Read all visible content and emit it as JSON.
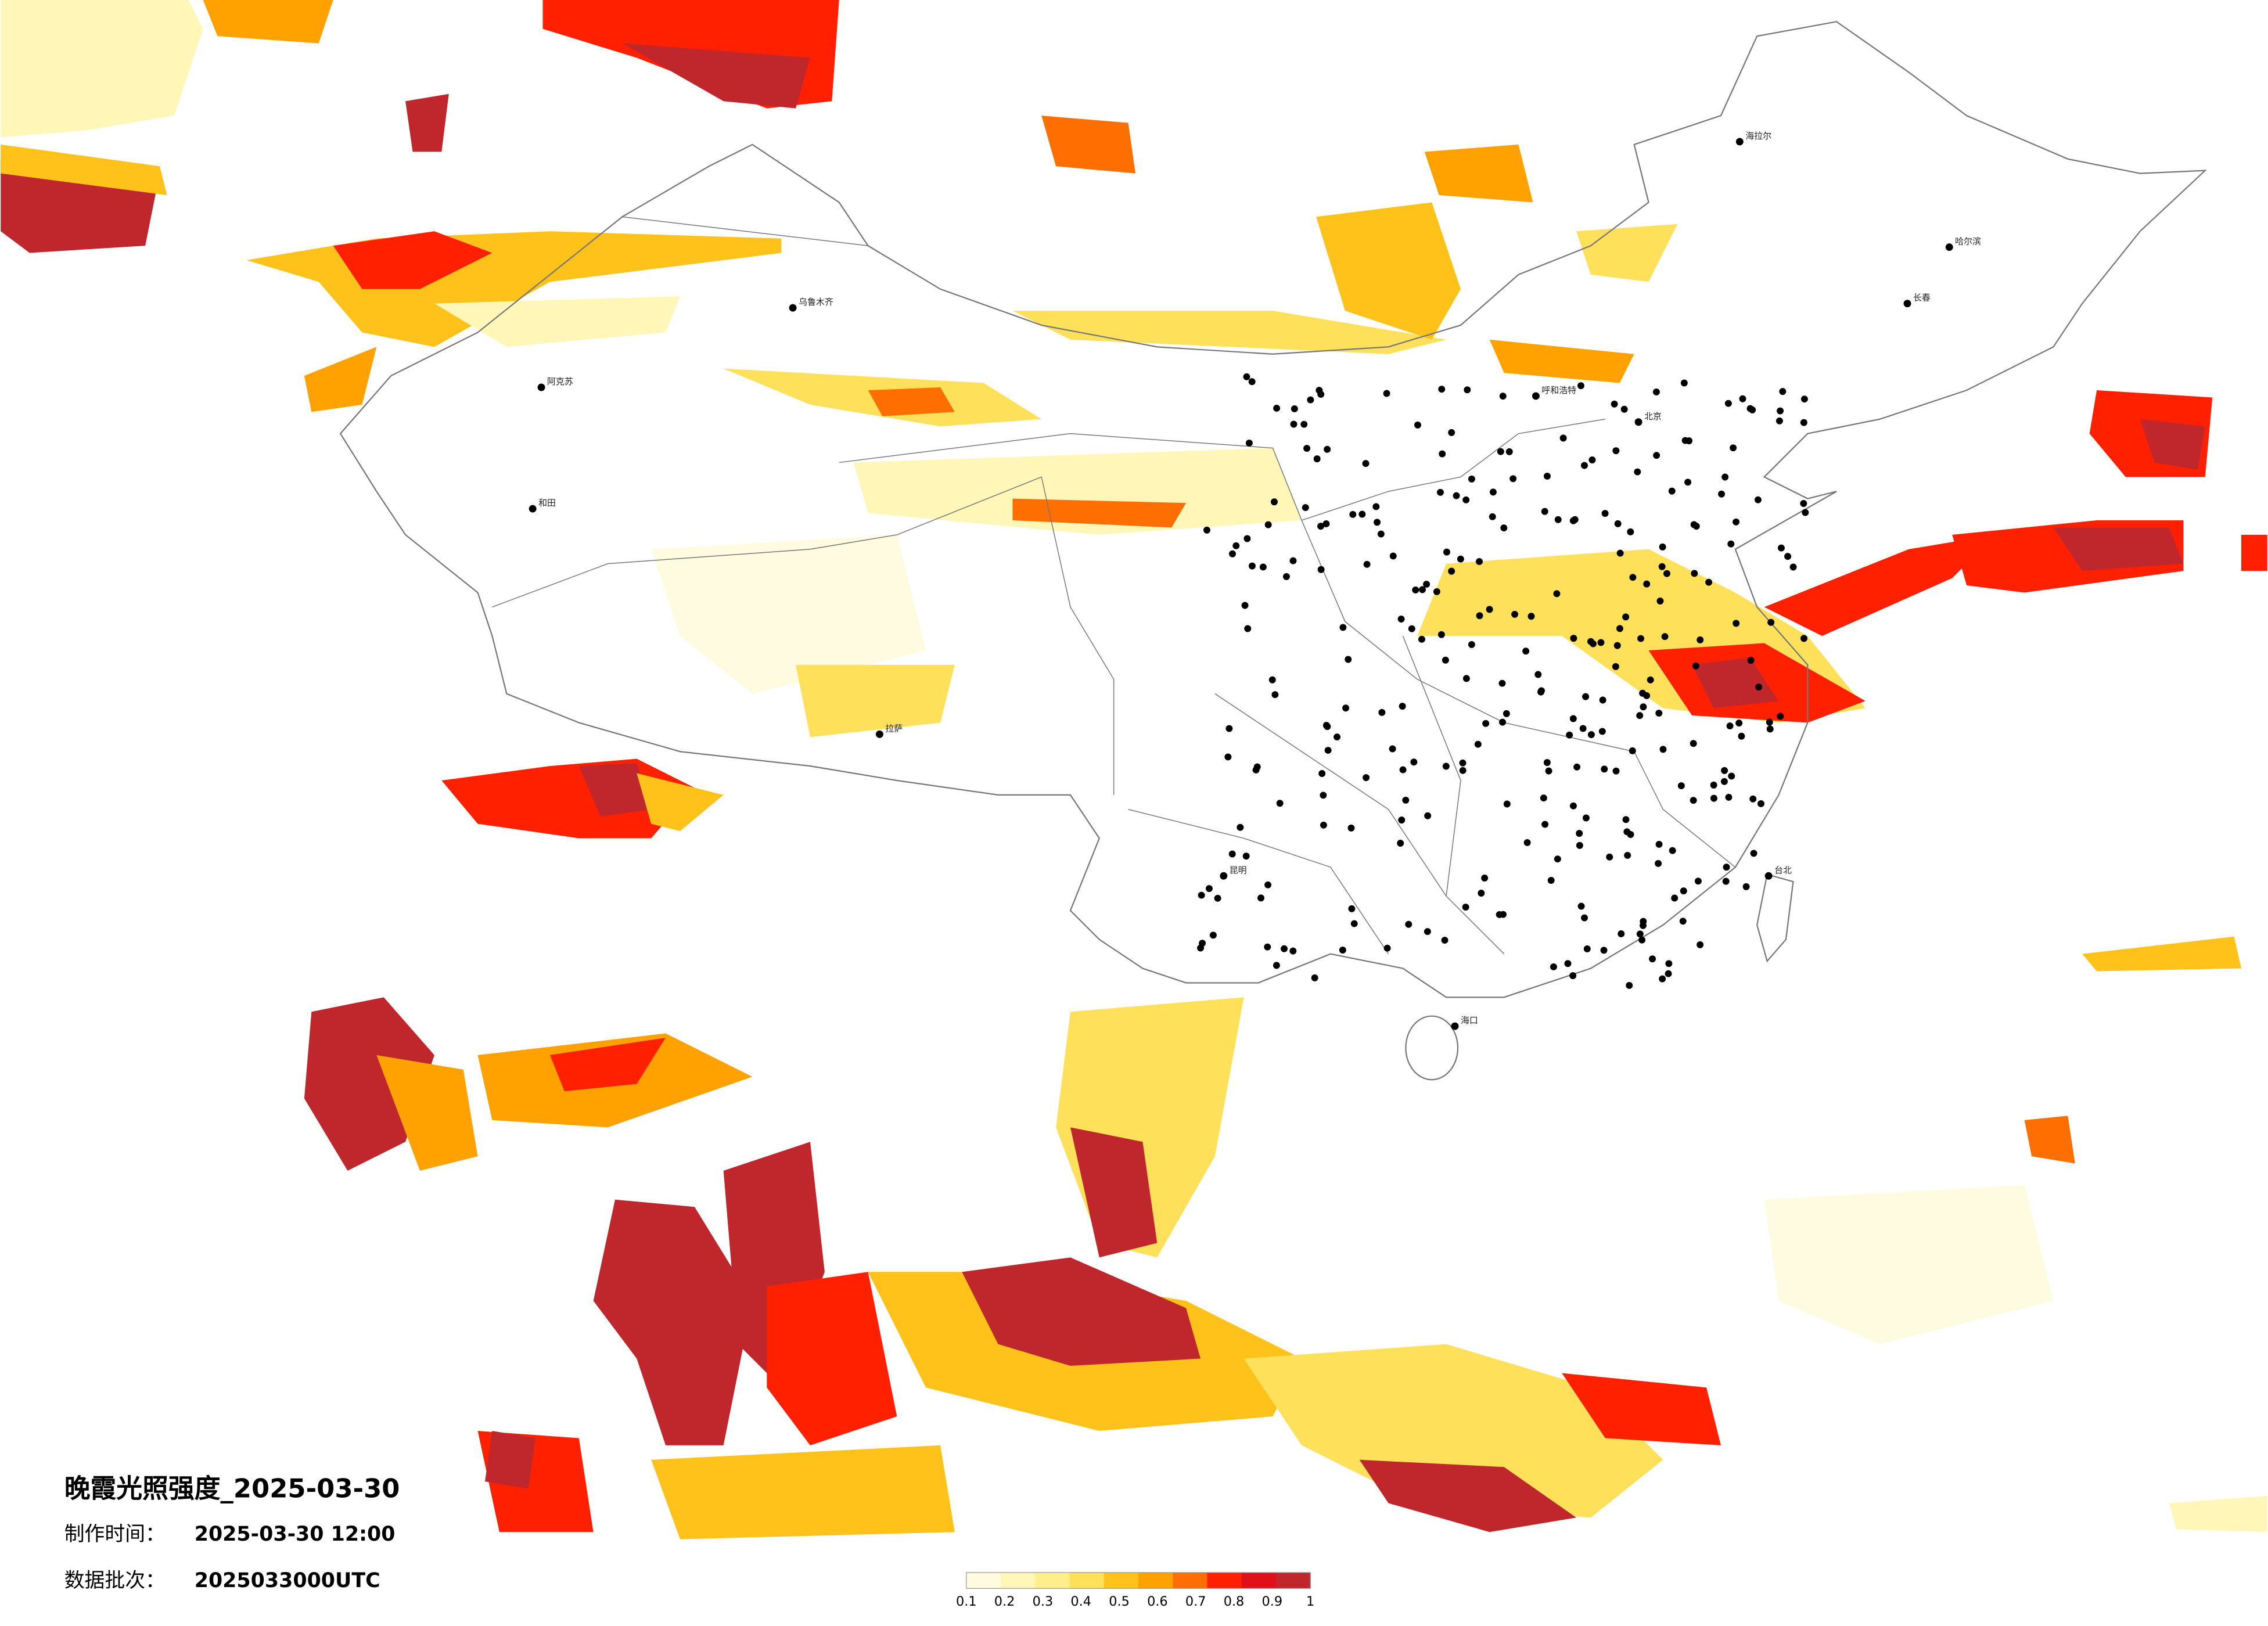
{
  "header": {
    "title": "晚霞光照强度_2025-03-30",
    "production_time_label": "制作时间：",
    "production_time": "2025-03-30 12:00",
    "batch_label": "数据批次：",
    "batch": "2025033000UTC"
  },
  "legend": {
    "colors": [
      "#fffbe0",
      "#fff6b8",
      "#ffef8a",
      "#ffe05a",
      "#ffc21a",
      "#ffa200",
      "#ff6e00",
      "#ff2000",
      "#e0101a",
      "#c0272d"
    ],
    "ticks": [
      0.1,
      0.2,
      0.3,
      0.4,
      0.5,
      0.6,
      0.7,
      0.8,
      0.9,
      1
    ]
  },
  "cities": [
    {
      "name": "乌鲁木齐"
    },
    {
      "name": "和田"
    },
    {
      "name": "拉萨"
    },
    {
      "name": "海拉尔"
    },
    {
      "name": "哈尔滨"
    },
    {
      "name": "长春"
    },
    {
      "name": "北京"
    },
    {
      "name": "呼和浩特"
    },
    {
      "name": "昆明"
    },
    {
      "name": "海口"
    },
    {
      "name": "台北"
    },
    {
      "name": "阿克苏"
    }
  ]
}
